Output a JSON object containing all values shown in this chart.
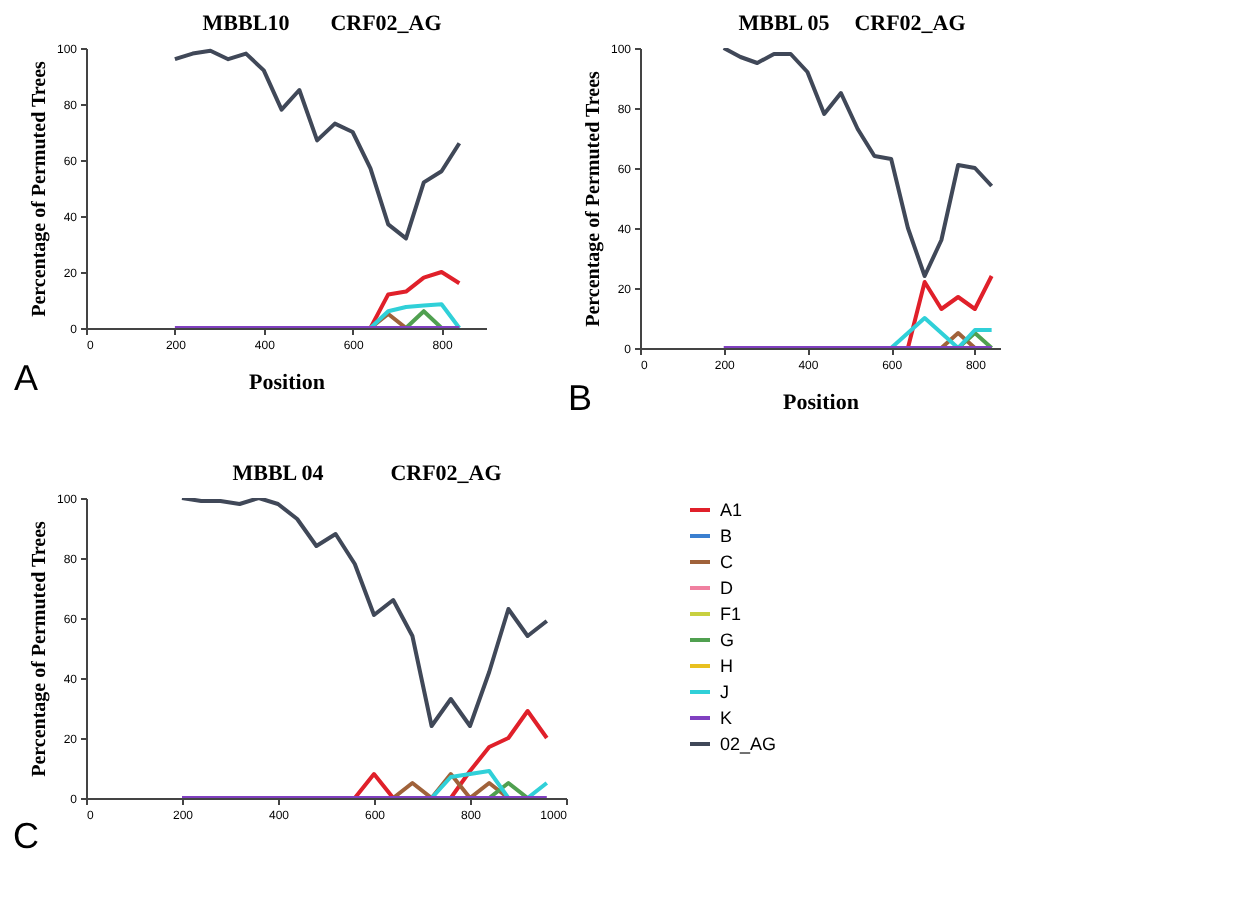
{
  "chart_data": [
    {
      "type": "line",
      "title": "MBBL10",
      "xlabel": "Position",
      "ylabel": "Percentage of Permuted Trees",
      "annotations": [
        "CRF02_AG",
        "A"
      ],
      "x": [
        200,
        240,
        280,
        320,
        360,
        400,
        440,
        480,
        520,
        560,
        600,
        640,
        680,
        720,
        760,
        800,
        840
      ],
      "xlim": [
        0,
        900
      ],
      "xticks": [
        0,
        200,
        400,
        600,
        800
      ],
      "ylim": [
        0,
        100
      ],
      "yticks": [
        0,
        20,
        40,
        60,
        80,
        100
      ],
      "series": [
        {
          "color": "#e0202a",
          "values": [
            null,
            null,
            null,
            null,
            null,
            null,
            null,
            null,
            null,
            null,
            null,
            0,
            12,
            13,
            18,
            20,
            16
          ]
        },
        {
          "color": "#a0623a",
          "values": [
            null,
            null,
            null,
            null,
            null,
            null,
            null,
            null,
            null,
            null,
            null,
            0,
            5,
            0,
            null,
            null,
            null
          ]
        },
        {
          "color": "#50a050",
          "values": [
            null,
            null,
            null,
            null,
            null,
            null,
            null,
            null,
            null,
            null,
            null,
            null,
            null,
            0,
            6,
            0,
            null
          ]
        },
        {
          "color": "#30d0d8",
          "values": [
            null,
            null,
            null,
            null,
            null,
            null,
            null,
            null,
            null,
            null,
            null,
            0,
            6,
            7.5,
            8,
            8.5,
            0
          ]
        },
        {
          "color": "#8040c0",
          "values": [
            0,
            0,
            0,
            0,
            0,
            0,
            0,
            0,
            0,
            0,
            0,
            0,
            0,
            0,
            0,
            0,
            0
          ]
        },
        {
          "color": "#404858",
          "values": [
            96,
            98,
            99,
            96,
            98,
            92,
            78,
            85,
            67,
            73,
            70,
            57,
            37,
            32,
            52,
            56,
            66
          ]
        }
      ]
    },
    {
      "type": "line",
      "title": "MBBL 05",
      "xlabel": "Position",
      "ylabel": "Percentage of  Permuted Trees",
      "annotations": [
        "CRF02_AG",
        "B"
      ],
      "x": [
        200,
        240,
        280,
        320,
        360,
        400,
        440,
        480,
        520,
        560,
        600,
        640,
        680,
        720,
        760,
        800,
        840
      ],
      "xlim": [
        0,
        860
      ],
      "xticks": [
        0,
        200,
        400,
        600,
        800
      ],
      "ylim": [
        0,
        100
      ],
      "yticks": [
        0,
        20,
        40,
        60,
        80,
        100
      ],
      "series": [
        {
          "color": "#e0202a",
          "values": [
            null,
            null,
            null,
            null,
            null,
            null,
            null,
            null,
            null,
            null,
            null,
            0,
            22,
            13,
            17,
            13,
            24
          ]
        },
        {
          "color": "#a0623a",
          "values": [
            null,
            null,
            null,
            null,
            null,
            null,
            null,
            null,
            null,
            null,
            null,
            null,
            null,
            0,
            5,
            0,
            null
          ]
        },
        {
          "color": "#50a050",
          "values": [
            null,
            null,
            null,
            null,
            null,
            null,
            null,
            null,
            null,
            null,
            null,
            null,
            null,
            null,
            0,
            5,
            0
          ]
        },
        {
          "color": "#30d0d8",
          "values": [
            null,
            null,
            null,
            null,
            null,
            null,
            null,
            null,
            null,
            null,
            0,
            5,
            10,
            5,
            0,
            6,
            6
          ]
        },
        {
          "color": "#8040c0",
          "values": [
            0,
            0,
            0,
            0,
            0,
            0,
            0,
            0,
            0,
            0,
            0,
            0,
            0,
            0,
            0,
            0,
            0
          ]
        },
        {
          "color": "#404858",
          "values": [
            100,
            97,
            95,
            98,
            98,
            92,
            78,
            85,
            73,
            64,
            63,
            40,
            24,
            36,
            61,
            60,
            54
          ]
        }
      ]
    },
    {
      "type": "line",
      "title": "MBBL 04",
      "ylabel": "Percentage of  Permuted Trees",
      "annotations": [
        "CRF02_AG",
        "C"
      ],
      "x": [
        200,
        240,
        280,
        320,
        360,
        400,
        440,
        480,
        520,
        560,
        600,
        640,
        680,
        720,
        760,
        800,
        840,
        880,
        920,
        960
      ],
      "xlim": [
        0,
        1000
      ],
      "xticks": [
        0,
        200,
        400,
        600,
        800,
        {
          "value": 1000,
          "label": "1000"
        }
      ],
      "ylim": [
        0,
        100
      ],
      "yticks": [
        0,
        20,
        40,
        60,
        80,
        100
      ],
      "legend": "right",
      "series": [
        {
          "name": "A1",
          "color": "#e0202a",
          "values": [
            null,
            null,
            null,
            null,
            null,
            null,
            null,
            null,
            null,
            0,
            8,
            0,
            0,
            0,
            0,
            9,
            17,
            20,
            29,
            20
          ]
        },
        {
          "name": "B",
          "color": "#3a7fd0",
          "values": [
            null,
            null,
            null,
            null,
            null,
            null,
            null,
            null,
            null,
            null,
            null,
            null,
            null,
            null,
            null,
            null,
            null,
            null,
            null,
            null
          ]
        },
        {
          "name": "C",
          "color": "#a0623a",
          "values": [
            null,
            null,
            null,
            null,
            null,
            null,
            null,
            null,
            null,
            null,
            null,
            0,
            5,
            0,
            8,
            0,
            5,
            0,
            null,
            null
          ]
        },
        {
          "name": "D",
          "color": "#f080a0",
          "values": [
            null,
            null,
            null,
            null,
            null,
            null,
            null,
            null,
            null,
            null,
            null,
            null,
            null,
            null,
            null,
            null,
            null,
            null,
            null,
            null
          ]
        },
        {
          "name": "F1",
          "color": "#c8d040",
          "values": [
            null,
            null,
            null,
            null,
            null,
            null,
            null,
            null,
            null,
            null,
            null,
            null,
            null,
            null,
            null,
            null,
            null,
            null,
            null,
            null
          ]
        },
        {
          "name": "G",
          "color": "#50a050",
          "values": [
            null,
            null,
            null,
            null,
            null,
            null,
            null,
            null,
            null,
            null,
            null,
            null,
            null,
            null,
            null,
            null,
            0,
            5,
            0,
            null
          ]
        },
        {
          "name": "H",
          "color": "#e8c020",
          "values": [
            null,
            null,
            null,
            null,
            null,
            null,
            null,
            null,
            null,
            null,
            null,
            null,
            null,
            null,
            null,
            null,
            null,
            null,
            null,
            null
          ]
        },
        {
          "name": "J",
          "color": "#30d0d8",
          "values": [
            null,
            null,
            null,
            null,
            null,
            null,
            null,
            null,
            null,
            null,
            null,
            null,
            null,
            0,
            7,
            8,
            9,
            0,
            0,
            5
          ]
        },
        {
          "name": "K",
          "color": "#8040c0",
          "values": [
            0,
            0,
            0,
            0,
            0,
            0,
            0,
            0,
            0,
            0,
            0,
            0,
            0,
            0,
            0,
            0,
            0,
            0,
            0,
            0
          ]
        },
        {
          "name": "02_AG",
          "color": "#404858",
          "values": [
            100,
            99,
            99,
            98,
            100,
            98,
            93,
            84,
            88,
            78,
            61,
            66,
            54,
            24,
            33,
            24,
            42,
            63,
            54,
            59
          ]
        }
      ]
    }
  ]
}
